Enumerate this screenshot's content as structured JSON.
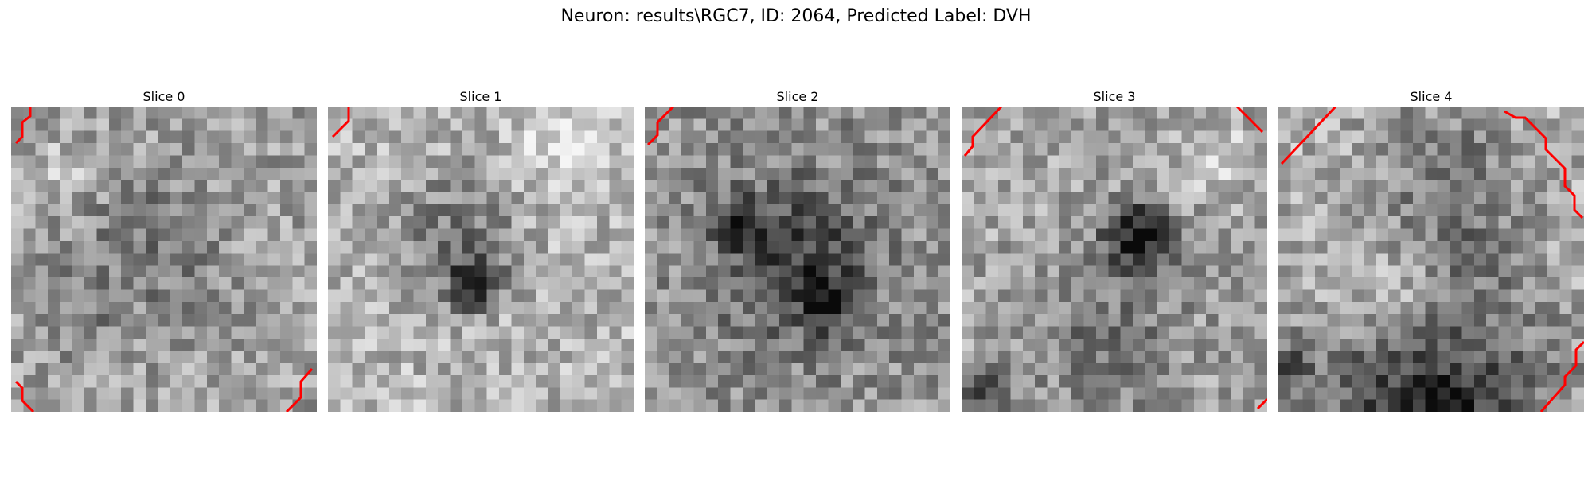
{
  "figure": {
    "title": "Neuron: results\\RGC7, ID: 2064, Predicted Label: DVH"
  },
  "slices": [
    {
      "title": "Slice 0",
      "seed": 11,
      "base": 0.64,
      "dark": [
        [
          0.45,
          0.45,
          0.32,
          0.12
        ],
        [
          0.2,
          0.7,
          0.2,
          0.08
        ]
      ],
      "bright": [
        [
          0.18,
          0.22,
          0.15,
          0.1
        ]
      ]
    },
    {
      "title": "Slice 1",
      "seed": 23,
      "base": 0.72,
      "dark": [
        [
          0.48,
          0.58,
          0.12,
          0.38
        ],
        [
          0.42,
          0.4,
          0.28,
          0.15
        ]
      ],
      "bright": [
        [
          0.78,
          0.12,
          0.2,
          0.15
        ]
      ]
    },
    {
      "title": "Slice 2",
      "seed": 37,
      "base": 0.58,
      "dark": [
        [
          0.5,
          0.5,
          0.36,
          0.22
        ],
        [
          0.6,
          0.64,
          0.12,
          0.25
        ],
        [
          0.32,
          0.38,
          0.12,
          0.2
        ]
      ],
      "bright": []
    },
    {
      "title": "Slice 3",
      "seed": 53,
      "base": 0.66,
      "dark": [
        [
          0.58,
          0.43,
          0.16,
          0.38
        ],
        [
          0.48,
          0.75,
          0.4,
          0.12
        ],
        [
          0.08,
          0.95,
          0.12,
          0.25
        ]
      ],
      "bright": [
        [
          0.85,
          0.18,
          0.15,
          0.12
        ]
      ]
    },
    {
      "title": "Slice 4",
      "seed": 71,
      "base": 0.7,
      "dark": [
        [
          0.5,
          0.98,
          0.55,
          0.35
        ],
        [
          0.02,
          0.85,
          0.1,
          0.3
        ],
        [
          0.58,
          0.45,
          0.3,
          0.1
        ],
        [
          0.55,
          0.18,
          0.35,
          0.12
        ]
      ],
      "bright": [
        [
          0.4,
          0.62,
          0.3,
          0.15
        ]
      ]
    }
  ],
  "contour_color": "#ff0000"
}
